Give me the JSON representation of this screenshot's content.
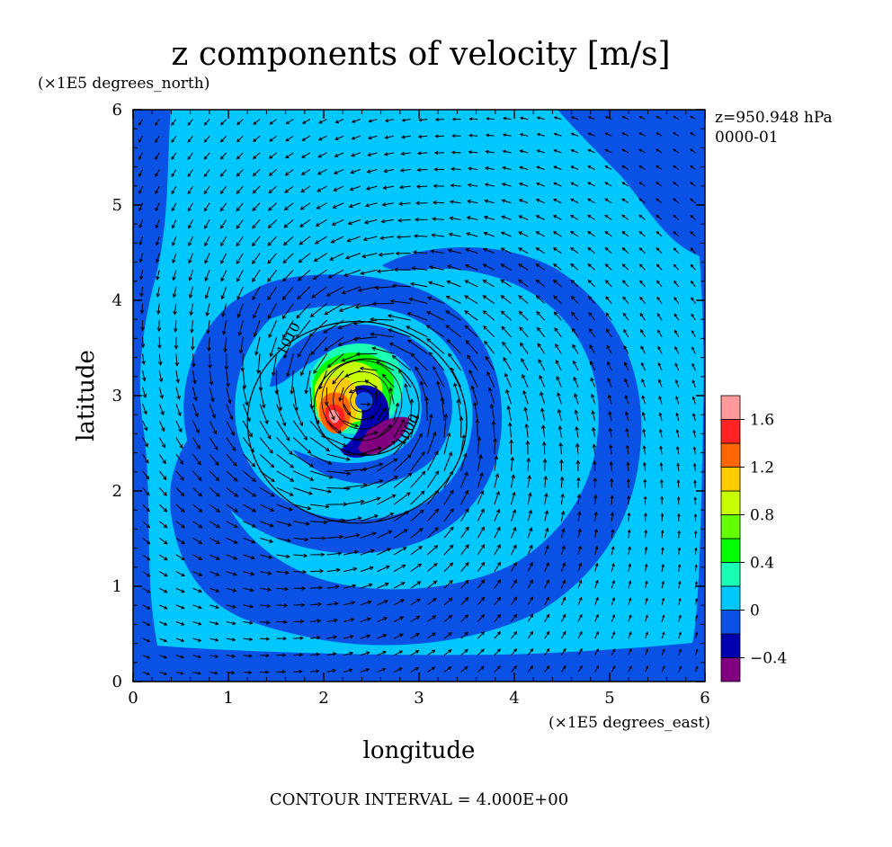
{
  "chart_data": {
    "type": "contourf",
    "title": "z components of velocity [m/s]",
    "xlabel": "longitude",
    "ylabel": "latitude",
    "x_units": "(×1E5 degrees_east)",
    "y_units": "(×1E5 degrees_north)",
    "xlim": [
      0,
      6
    ],
    "ylim": [
      0,
      6
    ],
    "xticks": [
      "0",
      "1",
      "2",
      "3",
      "4",
      "5",
      "6"
    ],
    "yticks": [
      "0",
      "1",
      "2",
      "3",
      "4",
      "5",
      "6"
    ],
    "level_info": "z=950.948 hPa",
    "time_info": "0000-01",
    "footer": "CONTOUR INTERVAL = 4.000E+00",
    "colorbar": {
      "ticks": [
        "1.6",
        "1.2",
        "0.8",
        "0.4",
        "0",
        "−0.4"
      ],
      "levels": [
        -0.6,
        -0.4,
        -0.2,
        0,
        0.2,
        0.4,
        0.6,
        0.8,
        1.0,
        1.2,
        1.4,
        1.6,
        1.8
      ],
      "colors": [
        "#800080",
        "#0000b0",
        "#0a52e6",
        "#00c8ff",
        "#19ffb4",
        "#00ff00",
        "#64ff00",
        "#c8ff00",
        "#ffcc00",
        "#ff6600",
        "#ff2222",
        "#ff9999"
      ]
    },
    "pressure_contours": [
      {
        "label": "1010",
        "center_x": 2.35,
        "center_y": 2.72,
        "radius": 1.15
      },
      {
        "label": "1000",
        "center_x": 2.45,
        "center_y": 2.88,
        "radius": 0.55
      }
    ],
    "vortex_center": [
      2.4,
      2.95
    ],
    "vector_field": "cyclonic"
  }
}
